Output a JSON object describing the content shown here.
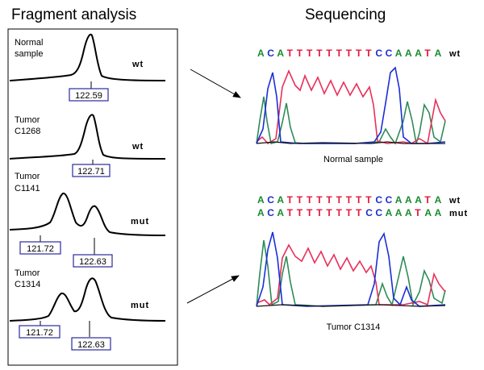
{
  "headings": {
    "left": "Fragment analysis",
    "right": "Sequencing"
  },
  "fragment_panels": [
    {
      "label_lines": [
        "Normal",
        "sample"
      ],
      "status": "wt",
      "peaks": [
        "122.59"
      ]
    },
    {
      "label_lines": [
        "Tumor",
        "C1268"
      ],
      "status": "wt",
      "peaks": [
        "122.71"
      ]
    },
    {
      "label_lines": [
        "Tumor",
        "C1141"
      ],
      "status": "mut",
      "peaks": [
        "121.72",
        "122.63"
      ]
    },
    {
      "label_lines": [
        "Tumor",
        "C1314"
      ],
      "status": "mut",
      "peaks": [
        "121.72",
        "122.63"
      ]
    }
  ],
  "sequencing": [
    {
      "caption": "Normal sample",
      "reads": [
        {
          "bases": "ACATTTTTTTTTCCAAATA",
          "status": "wt"
        }
      ]
    },
    {
      "caption": "Tumor C1314",
      "reads": [
        {
          "bases": "ACATTTTTTTTTCCAAATA",
          "status": "wt"
        },
        {
          "bases": "ACATTTTTTTTCCAAATAA",
          "status": "mut"
        }
      ]
    }
  ],
  "colors": {
    "A": "#1a8a2e",
    "C": "#1d2ec9",
    "G": "#000000",
    "T": "#e0173c",
    "peak_box": "#2a2aa0",
    "trace_green": "#2e8b57",
    "trace_red": "#e8305a",
    "trace_blue": "#1a2fd6",
    "trace_black": "#111111"
  }
}
